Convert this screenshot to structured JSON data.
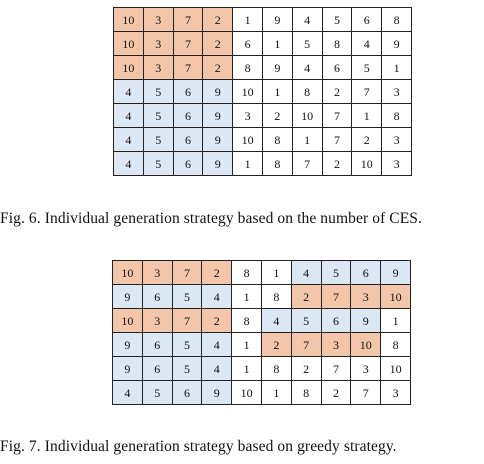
{
  "figures": [
    {
      "id": "fig6",
      "caption": "Fig. 6.  Individual generation strategy based on the number of CES.",
      "colors": {
        "o": "#f3c6aa",
        "b": "#dbe7f3",
        "w": "#ffffff"
      },
      "rows": [
        {
          "values": [
            "10",
            "3",
            "7",
            "2",
            "1",
            "9",
            "4",
            "5",
            "6",
            "8"
          ],
          "fill": "ooooxxxxxx"
        },
        {
          "values": [
            "10",
            "3",
            "7",
            "2",
            "6",
            "1",
            "5",
            "8",
            "4",
            "9"
          ],
          "fill": "ooooxxxxxx"
        },
        {
          "values": [
            "10",
            "3",
            "7",
            "2",
            "8",
            "9",
            "4",
            "6",
            "5",
            "1"
          ],
          "fill": "ooooxxxxxx"
        },
        {
          "values": [
            "4",
            "5",
            "6",
            "9",
            "10",
            "1",
            "8",
            "2",
            "7",
            "3"
          ],
          "fill": "bbbbxxxxxx"
        },
        {
          "values": [
            "4",
            "5",
            "6",
            "9",
            "3",
            "2",
            "10",
            "7",
            "1",
            "8"
          ],
          "fill": "bbbbxxxxxx"
        },
        {
          "values": [
            "4",
            "5",
            "6",
            "9",
            "10",
            "8",
            "1",
            "7",
            "2",
            "3"
          ],
          "fill": "bbbbxxxxxx"
        },
        {
          "values": [
            "4",
            "5",
            "6",
            "9",
            "1",
            "8",
            "7",
            "2",
            "10",
            "3"
          ],
          "fill": "bbbbxxxxxx"
        }
      ]
    },
    {
      "id": "fig7",
      "caption": "Fig. 7.  Individual generation strategy based on greedy strategy.",
      "colors": {
        "o": "#f3c6aa",
        "b": "#dbe7f3",
        "w": "#ffffff"
      },
      "rows": [
        {
          "values": [
            "10",
            "3",
            "7",
            "2",
            "8",
            "1",
            "4",
            "5",
            "6",
            "9"
          ],
          "fill": "ooooxxbbbb"
        },
        {
          "values": [
            "9",
            "6",
            "5",
            "4",
            "1",
            "8",
            "2",
            "7",
            "3",
            "10"
          ],
          "fill": "bbbbxxoooo"
        },
        {
          "values": [
            "10",
            "3",
            "7",
            "2",
            "8",
            "4",
            "5",
            "6",
            "9",
            "1"
          ],
          "fill": "ooooxbbbbx"
        },
        {
          "values": [
            "9",
            "6",
            "5",
            "4",
            "1",
            "2",
            "7",
            "3",
            "10",
            "8"
          ],
          "fill": "bbbbxoooox"
        },
        {
          "values": [
            "9",
            "6",
            "5",
            "4",
            "1",
            "8",
            "2",
            "7",
            "3",
            "10"
          ],
          "fill": "bbbbxxxxxx"
        },
        {
          "values": [
            "4",
            "5",
            "6",
            "9",
            "10",
            "1",
            "8",
            "2",
            "7",
            "3"
          ],
          "fill": "bbbbxxxxxx"
        }
      ]
    }
  ]
}
